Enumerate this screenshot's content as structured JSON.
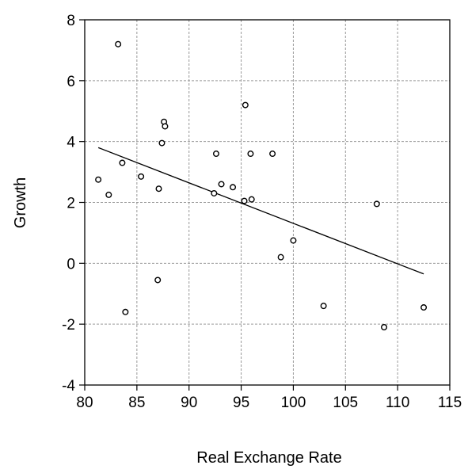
{
  "chart_data": {
    "type": "scatter",
    "title": "",
    "xlabel": "Real Exchange Rate",
    "ylabel": "Growth",
    "xlim": [
      80,
      115
    ],
    "ylim": [
      -4,
      8
    ],
    "x_ticks": [
      80,
      85,
      90,
      95,
      100,
      105,
      110,
      115
    ],
    "y_ticks": [
      -4,
      -2,
      0,
      2,
      4,
      6,
      8
    ],
    "grid": true,
    "points": [
      {
        "x": 81.3,
        "y": 2.75
      },
      {
        "x": 82.3,
        "y": 2.25
      },
      {
        "x": 83.2,
        "y": 7.2
      },
      {
        "x": 83.6,
        "y": 3.3
      },
      {
        "x": 83.9,
        "y": -1.6
      },
      {
        "x": 85.4,
        "y": 2.85
      },
      {
        "x": 87.0,
        "y": -0.55
      },
      {
        "x": 87.1,
        "y": 2.45
      },
      {
        "x": 87.4,
        "y": 3.95
      },
      {
        "x": 87.6,
        "y": 4.65
      },
      {
        "x": 87.7,
        "y": 4.5
      },
      {
        "x": 92.4,
        "y": 2.3
      },
      {
        "x": 92.6,
        "y": 3.6
      },
      {
        "x": 93.1,
        "y": 2.6
      },
      {
        "x": 94.2,
        "y": 2.5
      },
      {
        "x": 95.3,
        "y": 2.05
      },
      {
        "x": 95.4,
        "y": 5.2
      },
      {
        "x": 95.9,
        "y": 3.6
      },
      {
        "x": 96.0,
        "y": 2.1
      },
      {
        "x": 98.0,
        "y": 3.6
      },
      {
        "x": 98.8,
        "y": 0.2
      },
      {
        "x": 100.0,
        "y": 0.75
      },
      {
        "x": 102.9,
        "y": -1.4
      },
      {
        "x": 108.0,
        "y": 1.95
      },
      {
        "x": 108.7,
        "y": -2.1
      },
      {
        "x": 112.5,
        "y": -1.45
      }
    ],
    "fit_line": {
      "x": [
        81.3,
        112.5
      ],
      "y": [
        3.8,
        -0.35
      ]
    }
  }
}
